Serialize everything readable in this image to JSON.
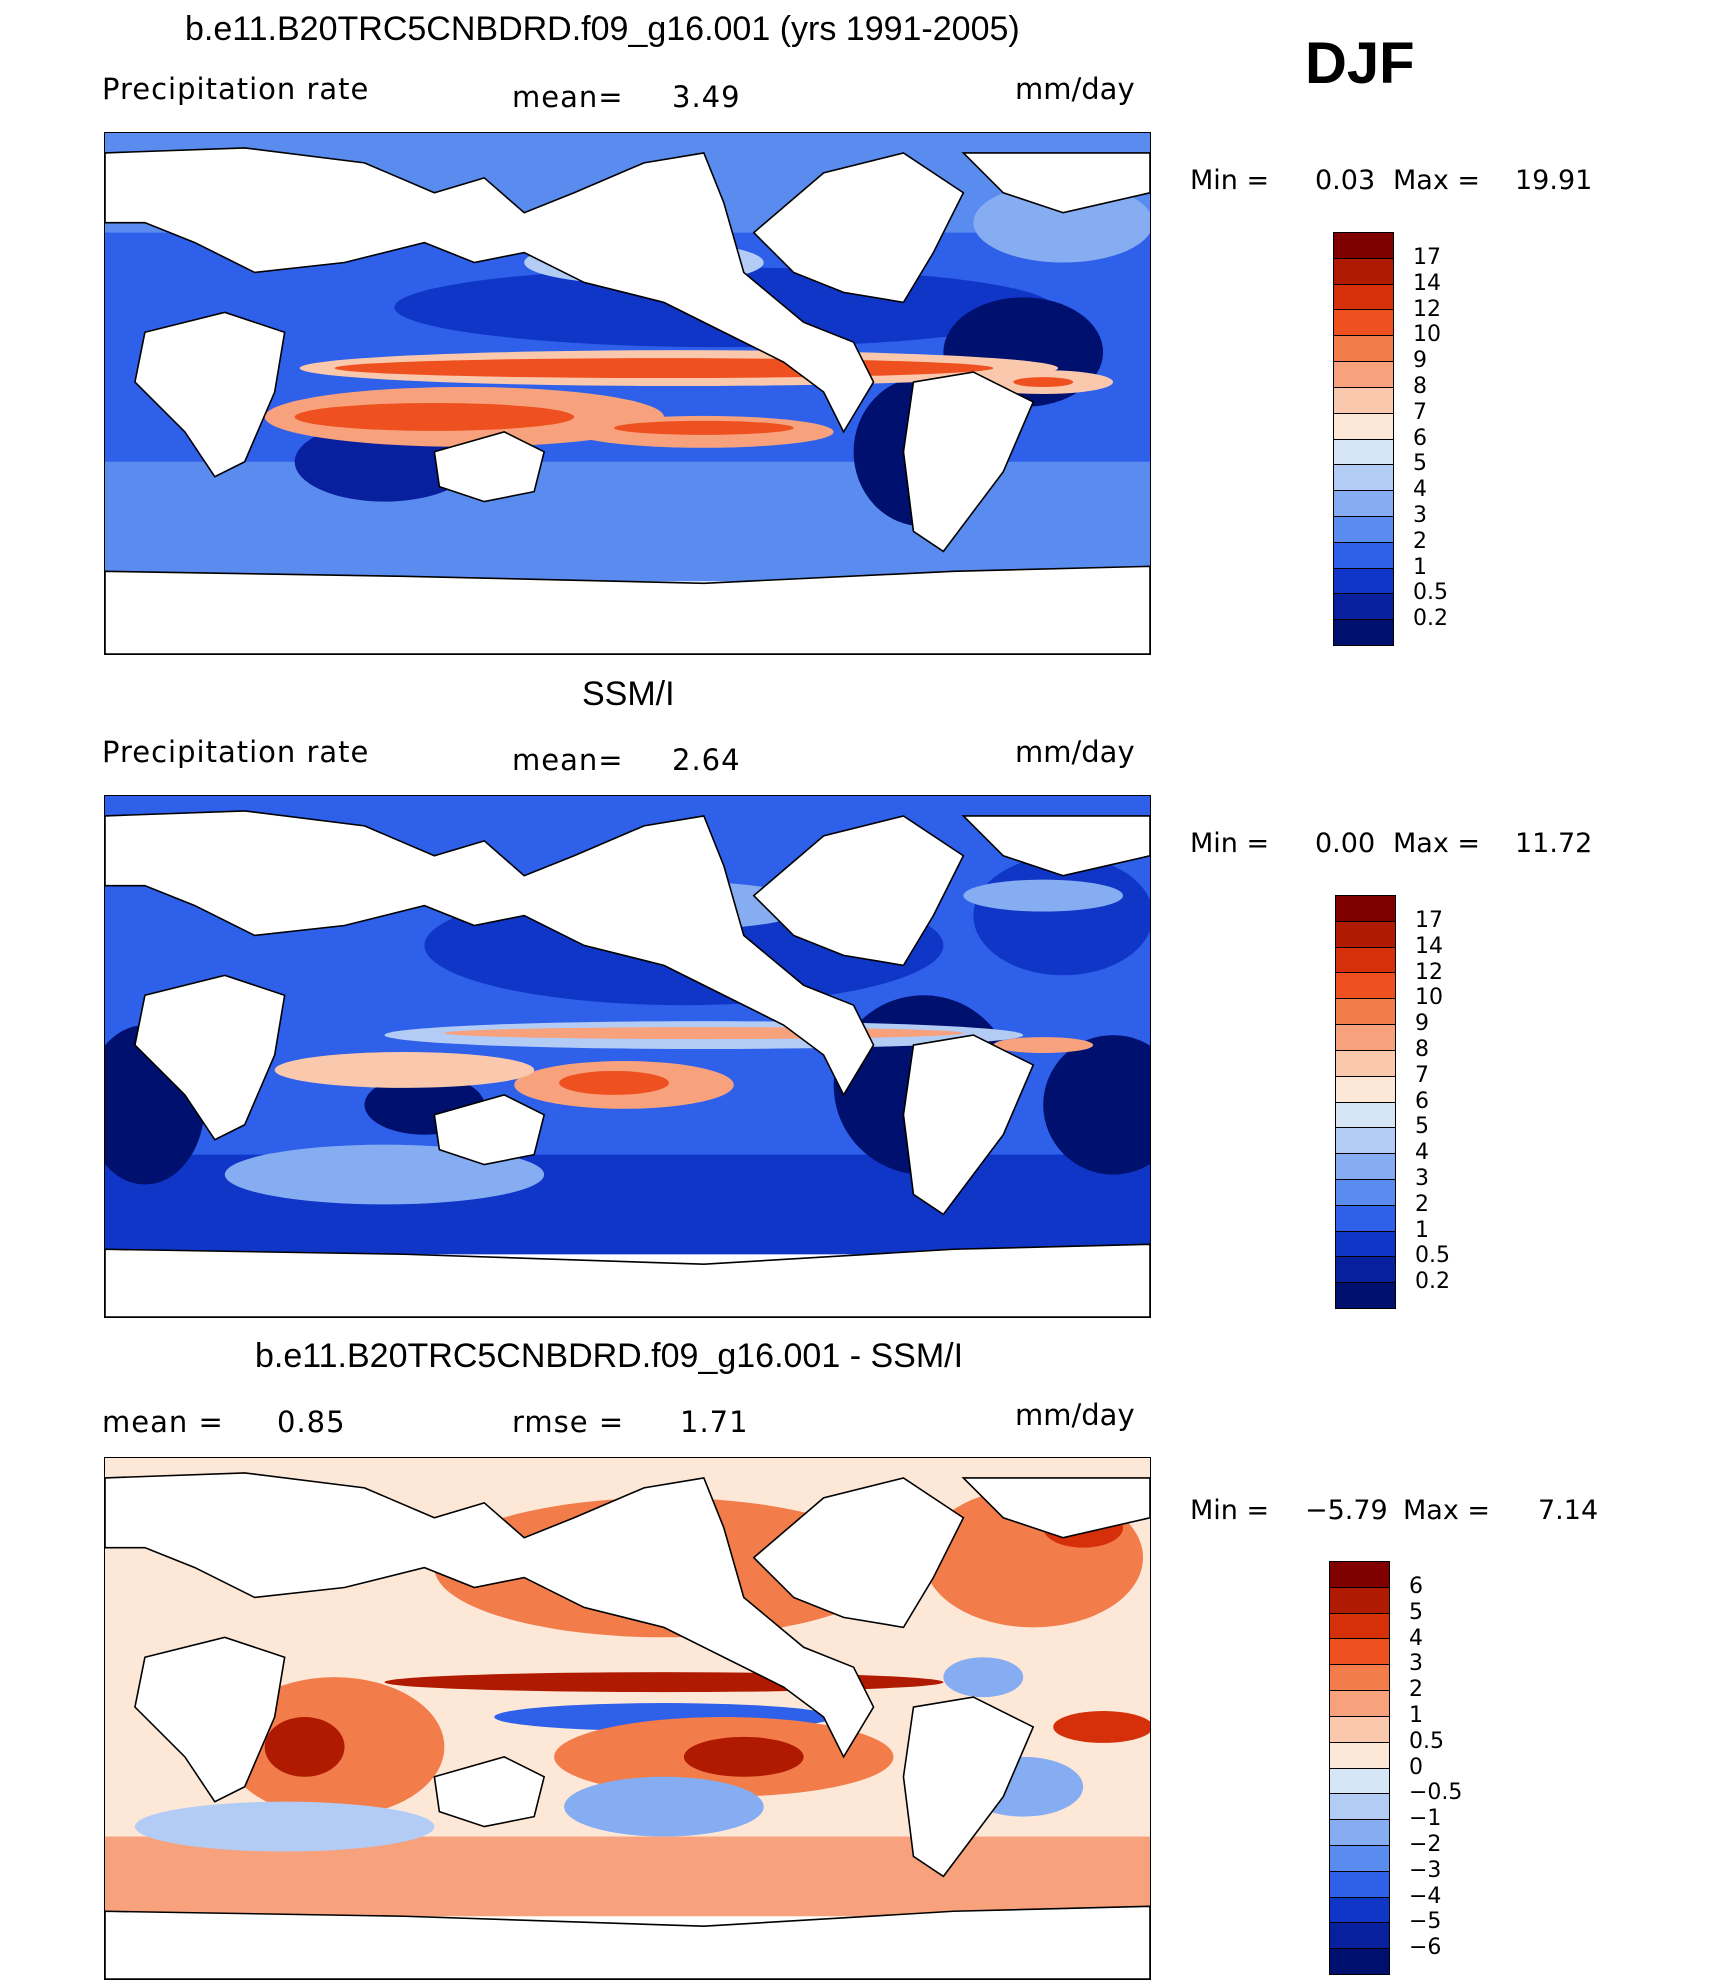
{
  "season": "DJF",
  "panels": [
    {
      "title": "b.e11.B20TRC5CNBDRD.f09_g16.001 (yrs 1991-2005)",
      "left_label": "Precipitation  rate",
      "mid_label": "mean=",
      "mid_value": "3.49",
      "units": "mm/day",
      "min_label": "Min  =",
      "min_value": "0.03",
      "max_label": "Max  =",
      "max_value": "19.91",
      "colorbar_ticks": [
        "17",
        "14",
        "12",
        "10",
        "9",
        "8",
        "7",
        "6",
        "5",
        "4",
        "3",
        "2",
        "1",
        "0.5",
        "0.2"
      ]
    },
    {
      "title": "SSM/I",
      "left_label": "Precipitation  rate",
      "mid_label": "mean=",
      "mid_value": "2.64",
      "units": "mm/day",
      "min_label": "Min  =",
      "min_value": "0.00",
      "max_label": "Max  =",
      "max_value": "11.72",
      "colorbar_ticks": [
        "17",
        "14",
        "12",
        "10",
        "9",
        "8",
        "7",
        "6",
        "5",
        "4",
        "3",
        "2",
        "1",
        "0.5",
        "0.2"
      ]
    },
    {
      "title": "b.e11.B20TRC5CNBDRD.f09_g16.001 - SSM/I",
      "left_label": "mean  =",
      "left_value": "0.85",
      "mid_label": "rmse  =",
      "mid_value": "1.71",
      "units": "mm/day",
      "min_label": "Min  =",
      "min_value": "−5.79",
      "max_label": "Max  =",
      "max_value": "7.14",
      "colorbar_ticks": [
        "6",
        "5",
        "4",
        "3",
        "2",
        "1",
        "0.5",
        "0",
        "−0.5",
        "−1",
        "−2",
        "−3",
        "−4",
        "−5",
        "−6"
      ]
    }
  ],
  "colors": {
    "precip_scale": [
      "#800000",
      "#b01a00",
      "#d6300a",
      "#ee5020",
      "#f27c4a",
      "#f7a27c",
      "#fac9ad",
      "#fde8d8",
      "#d6e6f7",
      "#b2ccf5",
      "#86acf2",
      "#5a8cf0",
      "#2e60ea",
      "#1036c8",
      "#08209e",
      "#00106e"
    ],
    "diff_scale": [
      "#800000",
      "#b01a00",
      "#d6300a",
      "#ee5020",
      "#f27c4a",
      "#f7a27c",
      "#fac9ad",
      "#fde8d8",
      "#d6e6f7",
      "#b2ccf5",
      "#86acf2",
      "#5a8cf0",
      "#2e60ea",
      "#1036c8",
      "#08209e",
      "#00106e"
    ]
  }
}
